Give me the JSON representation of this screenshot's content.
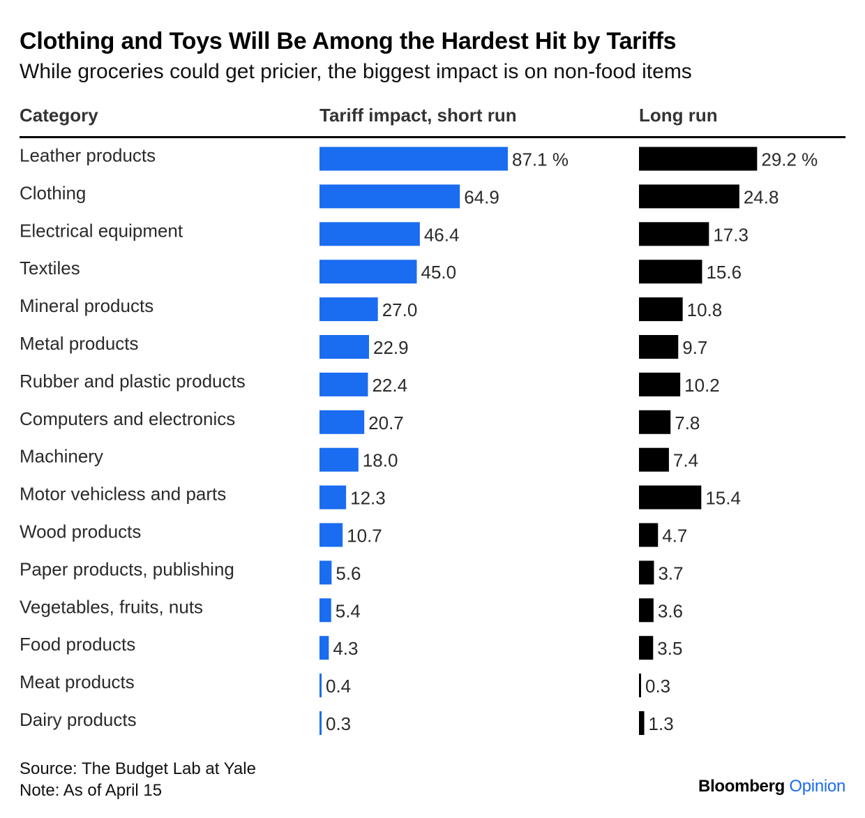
{
  "header": {
    "title": "Clothing and Toys Will Be Among the Hardest Hit by Tariffs",
    "subtitle": "While groceries could get pricier, the biggest impact is on non-food items"
  },
  "columns": {
    "category": "Category",
    "short_run": "Tariff impact, short run",
    "long_run": "Long run"
  },
  "chart_data": {
    "type": "bar",
    "orientation": "horizontal",
    "categories": [
      "Leather products",
      "Clothing",
      "Electrical equipment",
      "Textiles",
      "Mineral products",
      "Metal products",
      "Rubber and plastic products",
      "Computers and electronics",
      "Machinery",
      "Motor vehicless and parts",
      "Wood products",
      "Paper products, publishing",
      "Vegetables, fruits, nuts",
      "Food products",
      "Meat products",
      "Dairy products"
    ],
    "series": [
      {
        "name": "Tariff impact, short run",
        "color": "#1a6cf0",
        "values": [
          87.1,
          64.9,
          46.4,
          45.0,
          27.0,
          22.9,
          22.4,
          20.7,
          18.0,
          12.3,
          10.7,
          5.6,
          5.4,
          4.3,
          0.4,
          0.3
        ],
        "labels": [
          "87.1 %",
          "64.9",
          "46.4",
          "45.0",
          "27.0",
          "22.9",
          "22.4",
          "20.7",
          "18.0",
          "12.3",
          "10.7",
          "5.6",
          "5.4",
          "4.3",
          "0.4",
          "0.3"
        ]
      },
      {
        "name": "Long run",
        "color": "#000000",
        "values": [
          29.2,
          24.8,
          17.3,
          15.6,
          10.8,
          9.7,
          10.2,
          7.8,
          7.4,
          15.4,
          4.7,
          3.7,
          3.6,
          3.5,
          0.3,
          1.3
        ],
        "labels": [
          "29.2 %",
          "24.8",
          "17.3",
          "15.6",
          "10.8",
          "9.7",
          "10.2",
          "7.8",
          "7.4",
          "15.4",
          "4.7",
          "3.7",
          "3.6",
          "3.5",
          "0.3",
          "1.3"
        ]
      }
    ],
    "unit": "%",
    "grid": false,
    "legend": "none"
  },
  "footer": {
    "source": "Source: The Budget Lab at Yale",
    "note": "Note: As of April 15",
    "brand_bloomberg": "Bloomberg",
    "brand_opinion": "Opinion"
  }
}
